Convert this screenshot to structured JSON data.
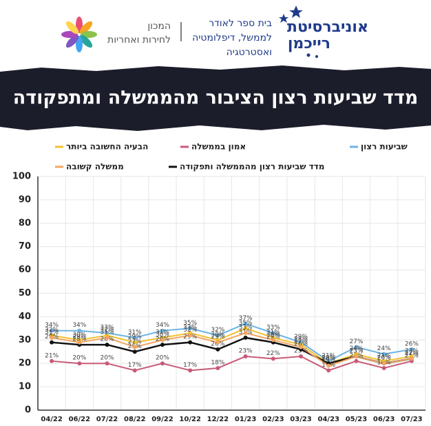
{
  "header": {
    "university": [
      "אוניברסיטת",
      "רייכמן"
    ],
    "school": [
      "בית ספר לאודר",
      "לממשל, דיפלומטיה",
      "ואסטרטגיה"
    ],
    "institute": [
      "המכון",
      "לחירות ואחריות"
    ]
  },
  "chart_data": {
    "type": "line",
    "title": "מדד שביעות רצון הציבור מהממשלה ומתפקודה",
    "categories": [
      "04/22",
      "06/22",
      "07/22",
      "08/22",
      "09/22",
      "10/22",
      "12/22",
      "01/23",
      "02/23",
      "03/23",
      "04/23",
      "05/23",
      "06/23",
      "07/23"
    ],
    "ylim": [
      0,
      100
    ],
    "yticks": [
      0,
      10,
      20,
      30,
      40,
      50,
      60,
      70,
      80,
      90,
      100
    ],
    "grid": true,
    "series": [
      {
        "name": "שביעות רצון",
        "color": "#6cb4e4",
        "values": [
          34,
          34,
          33,
          31,
          34,
          35,
          32,
          37,
          33,
          29,
          21,
          27,
          24,
          26
        ],
        "value_labels": [
          "34%",
          "34%",
          "33%",
          "31%",
          "34%",
          "35%",
          "32%",
          "37%",
          "33%",
          "29%",
          "21%",
          "27%",
          "24%",
          "26%"
        ]
      },
      {
        "name": "אמון בממשלה",
        "color": "#c85a78",
        "values": [
          21,
          20,
          20,
          17,
          20,
          17,
          18,
          23,
          22,
          23,
          17,
          21,
          18,
          21
        ],
        "value_labels": [
          "21%",
          "20%",
          "20%",
          "17%",
          "20%",
          "17%",
          "18%",
          "23%",
          "22%",
          "23%",
          "17%",
          "21%",
          "18%",
          "21%"
        ]
      },
      {
        "name": "הבעיה החשובה ביותר",
        "color": "#f2c230",
        "values": [
          32,
          30,
          32,
          29,
          31,
          33,
          30,
          35,
          31,
          28,
          20,
          24,
          21,
          23
        ],
        "value_labels": [
          "32%",
          "30%",
          "32%",
          "29%",
          "31%",
          "33%",
          "30%",
          "35%",
          "31%",
          "28%",
          "20%",
          "24%",
          "21%",
          "23%"
        ]
      },
      {
        "name": "מדד שביעות רצון מהממשלה ותפקודה",
        "color": "#111111",
        "values": [
          29,
          28,
          28,
          25,
          28,
          29,
          26,
          31,
          29,
          26,
          20,
          23,
          20,
          22
        ],
        "value_labels": [
          "29%",
          "28%",
          "28%",
          "25%",
          "28%",
          "29%",
          "26%",
          "31%",
          "29%",
          "26%",
          "20%",
          "23%",
          "20%",
          "22%"
        ]
      },
      {
        "name": "ממשלה קשובה",
        "color": "#f4a460",
        "values": [
          31,
          29,
          31,
          27,
          30,
          32,
          29,
          33,
          30,
          27,
          19,
          23,
          20,
          22
        ],
        "value_labels": [
          "31%",
          "29%",
          "31%",
          "27%",
          "30%",
          "32%",
          "29%",
          "33%",
          "30%",
          "27%",
          "19%",
          "23%",
          "20%",
          "22%"
        ]
      }
    ]
  }
}
